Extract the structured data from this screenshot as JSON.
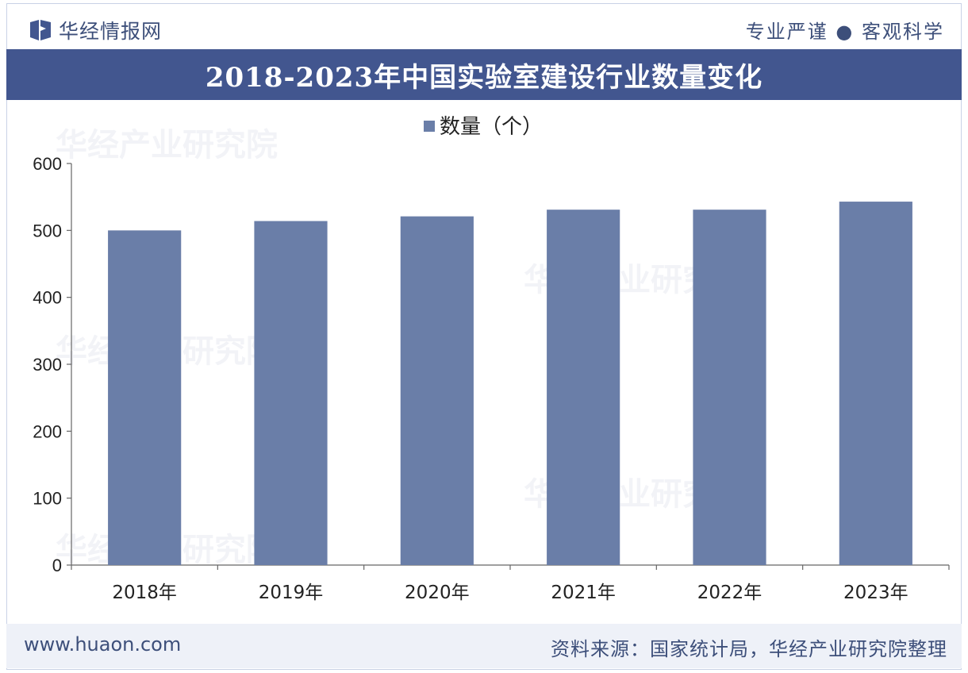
{
  "header": {
    "brand": "华经情报网",
    "slogan": "专业严谨 ● 客观科学",
    "logo_icon": "book-icon"
  },
  "title": "2018-2023年中国实验室建设行业数量变化",
  "watermark": "华经产业研究院",
  "footer": {
    "url": "www.huaon.com",
    "source": "资料来源：国家统计局，华经产业研究院整理"
  },
  "colors": {
    "accent": "#42568f",
    "bar": "#6a7ea8",
    "footer_bg": "#eef1f8"
  },
  "chart_data": {
    "type": "bar",
    "categories": [
      "2018年",
      "2019年",
      "2020年",
      "2021年",
      "2022年",
      "2023年"
    ],
    "series": [
      {
        "name": "数量（个）",
        "values": [
          500,
          514,
          521,
          531,
          531,
          543
        ]
      }
    ],
    "title": "2018-2023年中国实验室建设行业数量变化",
    "xlabel": "",
    "ylabel": "",
    "ylim": [
      0,
      600
    ],
    "yticks": [
      0,
      100,
      200,
      300,
      400,
      500,
      600
    ],
    "grid": false,
    "legend": "top-center"
  }
}
